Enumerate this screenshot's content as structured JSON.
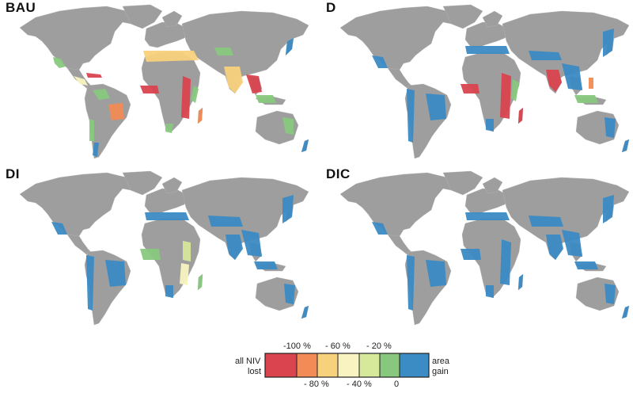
{
  "panels": [
    {
      "id": "BAU",
      "label": "BAU"
    },
    {
      "id": "D",
      "label": "D"
    },
    {
      "id": "DI",
      "label": "DI"
    },
    {
      "id": "DIC",
      "label": "DIC"
    }
  ],
  "legend": {
    "left_label_line1": "all NIV",
    "left_label_line2": "lost",
    "right_label_line1": "area",
    "right_label_line2": "gain",
    "ticks_top": [
      "-100 %",
      "- 60 %",
      "- 20 %"
    ],
    "ticks_bottom": [
      "- 80 %",
      "- 40 %",
      "0"
    ],
    "colors": [
      "#d9444f",
      "#f28b55",
      "#f7d17c",
      "#f8f3c0",
      "#d6e89a",
      "#88c87e",
      "#3b8bc4"
    ]
  },
  "colors": {
    "land": "#9e9e9e",
    "ocean": "#ffffff",
    "loss_full": "#d9444f",
    "loss_80": "#f28b55",
    "loss_60": "#f7d17c",
    "loss_40": "#f8f3c0",
    "loss_20": "#d6e89a",
    "loss_0": "#88c87e",
    "gain": "#3b8bc4"
  }
}
